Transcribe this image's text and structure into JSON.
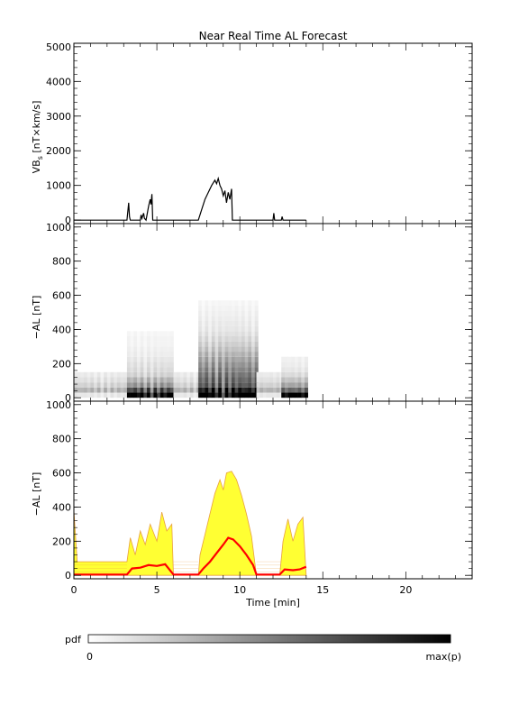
{
  "chart_data": [
    {
      "type": "line",
      "title": "Near Real Time AL Forecast",
      "ylabel": "VB_s [nT×km/s]",
      "ylabel_main": "VB",
      "ylabel_sub": "s",
      "ylabel_rest": " [nT×km/s]",
      "xlim": [
        0,
        24
      ],
      "ylim": [
        -100,
        5100
      ],
      "yticks": [
        0,
        1000,
        2000,
        3000,
        4000,
        5000
      ],
      "ytick_labels": [
        "0",
        "1000",
        "2000",
        "3000",
        "4000",
        "5000"
      ],
      "grid": false,
      "series": [
        {
          "color": "#000000",
          "points": [
            [
              0,
              0
            ],
            [
              3.2,
              0
            ],
            [
              3.3,
              500
            ],
            [
              3.35,
              100
            ],
            [
              3.4,
              0
            ],
            [
              4.0,
              0
            ],
            [
              4.05,
              150
            ],
            [
              4.1,
              50
            ],
            [
              4.2,
              200
            ],
            [
              4.25,
              50
            ],
            [
              4.35,
              0
            ],
            [
              4.5,
              400
            ],
            [
              4.6,
              600
            ],
            [
              4.65,
              450
            ],
            [
              4.7,
              750
            ],
            [
              4.75,
              0
            ],
            [
              7.5,
              0
            ],
            [
              7.7,
              300
            ],
            [
              7.9,
              600
            ],
            [
              8.1,
              800
            ],
            [
              8.3,
              1000
            ],
            [
              8.5,
              1150
            ],
            [
              8.6,
              1050
            ],
            [
              8.7,
              1200
            ],
            [
              8.8,
              1000
            ],
            [
              8.9,
              900
            ],
            [
              9.0,
              700
            ],
            [
              9.1,
              850
            ],
            [
              9.2,
              500
            ],
            [
              9.3,
              800
            ],
            [
              9.4,
              600
            ],
            [
              9.5,
              900
            ],
            [
              9.55,
              0
            ],
            [
              12.0,
              0
            ],
            [
              12.05,
              200
            ],
            [
              12.1,
              0
            ],
            [
              12.5,
              0
            ],
            [
              12.55,
              100
            ],
            [
              12.6,
              0
            ],
            [
              14,
              0
            ]
          ]
        }
      ]
    },
    {
      "type": "heatmap",
      "ylabel": "−AL [nT]",
      "xlim": [
        0,
        24
      ],
      "ylim": [
        -20,
        1020
      ],
      "yticks": [
        0,
        200,
        400,
        600,
        800,
        1000
      ],
      "ytick_labels": [
        "0",
        "200",
        "400",
        "600",
        "800",
        "1000"
      ],
      "x_range": [
        0,
        14
      ],
      "grid": false,
      "colorbar": {
        "label": "pdf",
        "min_label": "0",
        "max_label": "max(p)"
      },
      "columns": [
        {
          "x0": 0.0,
          "x1": 3.2,
          "cells": [
            [
              0,
              0.08
            ],
            [
              1,
              0.25
            ],
            [
              2,
              0.15
            ],
            [
              3,
              0.1
            ],
            [
              4,
              0.07
            ]
          ]
        },
        {
          "x0": 3.2,
          "x1": 6.0,
          "cells": [
            [
              0,
              0.95
            ],
            [
              1,
              0.6
            ],
            [
              2,
              0.35
            ],
            [
              3,
              0.25
            ],
            [
              4,
              0.15
            ],
            [
              5,
              0.12
            ],
            [
              6,
              0.1
            ],
            [
              7,
              0.08
            ],
            [
              8,
              0.06
            ],
            [
              9,
              0.05
            ],
            [
              10,
              0.04
            ],
            [
              11,
              0.04
            ],
            [
              12,
              0.03
            ]
          ]
        },
        {
          "x0": 6.0,
          "x1": 7.5,
          "cells": [
            [
              0,
              0.08
            ],
            [
              1,
              0.25
            ],
            [
              2,
              0.15
            ],
            [
              3,
              0.1
            ],
            [
              4,
              0.07
            ]
          ]
        },
        {
          "x0": 7.5,
          "x1": 11.0,
          "cells": [
            [
              0,
              1.0
            ],
            [
              1,
              0.75
            ],
            [
              2,
              0.55
            ],
            [
              3,
              0.5
            ],
            [
              4,
              0.45
            ],
            [
              5,
              0.4
            ],
            [
              6,
              0.35
            ],
            [
              7,
              0.3
            ],
            [
              8,
              0.25
            ],
            [
              9,
              0.2
            ],
            [
              10,
              0.16
            ],
            [
              11,
              0.13
            ],
            [
              12,
              0.1
            ],
            [
              13,
              0.08
            ],
            [
              14,
              0.07
            ],
            [
              15,
              0.06
            ],
            [
              16,
              0.05
            ],
            [
              17,
              0.04
            ],
            [
              18,
              0.03
            ]
          ]
        },
        {
          "x0": 11.0,
          "x1": 12.5,
          "cells": [
            [
              0,
              0.08
            ],
            [
              1,
              0.25
            ],
            [
              2,
              0.15
            ],
            [
              3,
              0.1
            ],
            [
              4,
              0.07
            ]
          ]
        },
        {
          "x0": 12.5,
          "x1": 14.0,
          "cells": [
            [
              0,
              0.9
            ],
            [
              1,
              0.5
            ],
            [
              2,
              0.3
            ],
            [
              3,
              0.2
            ],
            [
              4,
              0.12
            ],
            [
              5,
              0.08
            ],
            [
              6,
              0.06
            ],
            [
              7,
              0.05
            ]
          ]
        }
      ],
      "cell_height": 30
    },
    {
      "type": "area",
      "ylabel": "−AL [nT]",
      "xlabel": "Time [min]",
      "xlim": [
        0,
        24
      ],
      "ylim": [
        -20,
        1020
      ],
      "xticks": [
        0,
        5,
        10,
        15,
        20
      ],
      "xtick_labels": [
        "0",
        "5",
        "10",
        "15",
        "20"
      ],
      "yticks": [
        0,
        200,
        400,
        600,
        800,
        1000
      ],
      "ytick_labels": [
        "0",
        "200",
        "400",
        "600",
        "800",
        "1000"
      ],
      "grid": false,
      "upper_band": {
        "color": "#ffff33",
        "edge_color": "#e8a040",
        "points": [
          [
            0,
            380
          ],
          [
            0.2,
            80
          ],
          [
            3.2,
            80
          ],
          [
            3.4,
            220
          ],
          [
            3.7,
            120
          ],
          [
            4.0,
            260
          ],
          [
            4.3,
            180
          ],
          [
            4.6,
            300
          ],
          [
            5.0,
            200
          ],
          [
            5.3,
            370
          ],
          [
            5.6,
            260
          ],
          [
            5.9,
            300
          ],
          [
            6.0,
            0
          ],
          [
            7.5,
            0
          ],
          [
            7.6,
            120
          ],
          [
            7.9,
            240
          ],
          [
            8.2,
            360
          ],
          [
            8.5,
            480
          ],
          [
            8.8,
            560
          ],
          [
            9.0,
            500
          ],
          [
            9.2,
            600
          ],
          [
            9.5,
            610
          ],
          [
            9.8,
            560
          ],
          [
            10.1,
            470
          ],
          [
            10.4,
            360
          ],
          [
            10.7,
            230
          ],
          [
            11.0,
            0
          ],
          [
            12.4,
            0
          ],
          [
            12.6,
            200
          ],
          [
            12.9,
            330
          ],
          [
            13.2,
            200
          ],
          [
            13.5,
            300
          ],
          [
            13.8,
            340
          ],
          [
            14.0,
            0
          ]
        ]
      },
      "median": {
        "color": "#ff0000",
        "points": [
          [
            0,
            5
          ],
          [
            3.2,
            5
          ],
          [
            3.5,
            40
          ],
          [
            4.0,
            45
          ],
          [
            4.5,
            60
          ],
          [
            5.0,
            55
          ],
          [
            5.5,
            65
          ],
          [
            6.0,
            5
          ],
          [
            7.5,
            5
          ],
          [
            7.8,
            40
          ],
          [
            8.2,
            80
          ],
          [
            8.6,
            130
          ],
          [
            9.0,
            180
          ],
          [
            9.3,
            220
          ],
          [
            9.6,
            210
          ],
          [
            10.0,
            170
          ],
          [
            10.4,
            120
          ],
          [
            10.8,
            60
          ],
          [
            11.0,
            5
          ],
          [
            12.4,
            5
          ],
          [
            12.7,
            35
          ],
          [
            13.2,
            30
          ],
          [
            13.6,
            35
          ],
          [
            14.0,
            50
          ]
        ]
      }
    }
  ]
}
